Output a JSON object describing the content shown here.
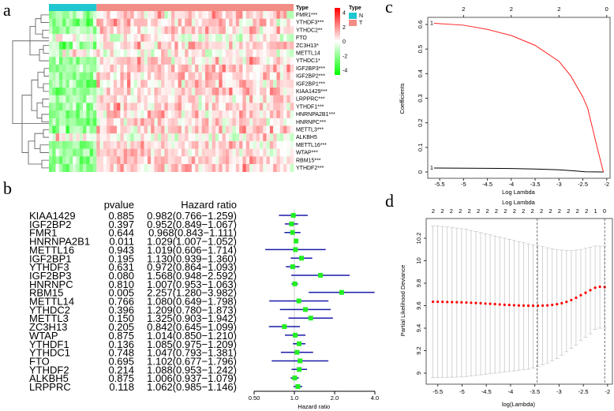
{
  "panel_labels": {
    "a": "a",
    "b": "b",
    "c": "c",
    "d": "d"
  },
  "chart_data": [
    {
      "type": "heatmap",
      "panel": "a",
      "annotation_label": "Type",
      "groups": [
        {
          "name": "N",
          "color": "#1fc7d1",
          "count": 14
        },
        {
          "name": "T",
          "color": "#f28d86",
          "count": 58
        }
      ],
      "legend_title": "Type",
      "color_scale": {
        "min": -4,
        "max": 4,
        "ticks": [
          4,
          2,
          0,
          -2,
          -4
        ],
        "low_color": "#00ff00",
        "mid_color": "#ffffff",
        "high_color": "#ff0000"
      },
      "rows": [
        "FMR1***",
        "YTHDF3***",
        "YTHDC2**",
        "FTO",
        "ZC3H13*",
        "METTL14",
        "YTHDC1*",
        "IGF2BP3***",
        "IGF2BP2***",
        "IGF2BP1***",
        "KIAA1429***",
        "LRPPRC***",
        "YTHDF1***",
        "HNRNPA2B1***",
        "HNRNPC***",
        "METTL3***",
        "ALKBH5",
        "METTL16***",
        "WTAP***",
        "RBM15***",
        "YTHDF2***"
      ]
    },
    {
      "type": "forest",
      "panel": "b",
      "headers": {
        "pvalue": "pvalue",
        "hr": "Hazard ratio"
      },
      "xlabel": "Hazard ratio",
      "xticks": [
        "0.50",
        "1.0",
        "2.0",
        "4.0"
      ],
      "xlim": [
        0.5,
        4.0
      ],
      "rows": [
        {
          "gene": "KIAA1429",
          "pvalue": "0.885",
          "hr_text": "0.982(0.766−1.259)",
          "hr": 0.982,
          "lo": 0.766,
          "hi": 1.259
        },
        {
          "gene": "IGF2BP2",
          "pvalue": "0.397",
          "hr_text": "0.952(0.849−1.067)",
          "hr": 0.952,
          "lo": 0.849,
          "hi": 1.067
        },
        {
          "gene": "FMR1",
          "pvalue": "0.644",
          "hr_text": "0.968(0.843−1.111)",
          "hr": 0.968,
          "lo": 0.843,
          "hi": 1.111
        },
        {
          "gene": "HNRNPA2B1",
          "pvalue": "0.011",
          "hr_text": "1.029(1.007−1.052)",
          "hr": 1.029,
          "lo": 1.007,
          "hi": 1.052
        },
        {
          "gene": "METTL16",
          "pvalue": "0.943",
          "hr_text": "1.019(0.606−1.714)",
          "hr": 1.019,
          "lo": 0.606,
          "hi": 1.714
        },
        {
          "gene": "IGF2BP1",
          "pvalue": "0.195",
          "hr_text": "1.130(0.939−1.360)",
          "hr": 1.13,
          "lo": 0.939,
          "hi": 1.36
        },
        {
          "gene": "YTHDF3",
          "pvalue": "0.631",
          "hr_text": "0.972(0.864−1.093)",
          "hr": 0.972,
          "lo": 0.864,
          "hi": 1.093
        },
        {
          "gene": "IGF2BP3",
          "pvalue": "0.080",
          "hr_text": "1.568(0.948−2.592)",
          "hr": 1.568,
          "lo": 0.948,
          "hi": 2.592
        },
        {
          "gene": "HNRNPC",
          "pvalue": "0.810",
          "hr_text": "1.007(0.953−1.063)",
          "hr": 1.007,
          "lo": 0.953,
          "hi": 1.063
        },
        {
          "gene": "RBM15",
          "pvalue": "0.005",
          "hr_text": "2.257(1.280−3.982)",
          "hr": 2.257,
          "lo": 1.28,
          "hi": 3.982
        },
        {
          "gene": "METTL14",
          "pvalue": "0.766",
          "hr_text": "1.080(0.649−1.798)",
          "hr": 1.08,
          "lo": 0.649,
          "hi": 1.798
        },
        {
          "gene": "YTHDC2",
          "pvalue": "0.396",
          "hr_text": "1.209(0.780−1.873)",
          "hr": 1.209,
          "lo": 0.78,
          "hi": 1.873
        },
        {
          "gene": "METTL3",
          "pvalue": "0.150",
          "hr_text": "1.325(0.903−1.942)",
          "hr": 1.325,
          "lo": 0.903,
          "hi": 1.942
        },
        {
          "gene": "ZC3H13",
          "pvalue": "0.205",
          "hr_text": "0.842(0.645−1.099)",
          "hr": 0.842,
          "lo": 0.645,
          "hi": 1.099
        },
        {
          "gene": "WTAP",
          "pvalue": "0.875",
          "hr_text": "1.014(0.850−1.210)",
          "hr": 1.014,
          "lo": 0.85,
          "hi": 1.21
        },
        {
          "gene": "YTHDF1",
          "pvalue": "0.136",
          "hr_text": "1.085(0.975−1.209)",
          "hr": 1.085,
          "lo": 0.975,
          "hi": 1.209
        },
        {
          "gene": "YTHDC1",
          "pvalue": "0.748",
          "hr_text": "1.047(0.793−1.381)",
          "hr": 1.047,
          "lo": 0.793,
          "hi": 1.381
        },
        {
          "gene": "FTO",
          "pvalue": "0.695",
          "hr_text": "1.102(0.677−1.796)",
          "hr": 1.102,
          "lo": 0.677,
          "hi": 1.796
        },
        {
          "gene": "YTHDF2",
          "pvalue": "0.214",
          "hr_text": "1.088(0.953−1.242)",
          "hr": 1.088,
          "lo": 0.953,
          "hi": 1.242
        },
        {
          "gene": "ALKBH5",
          "pvalue": "0.875",
          "hr_text": "1.006(0.937−1.079)",
          "hr": 1.006,
          "lo": 0.937,
          "hi": 1.079
        },
        {
          "gene": "LRPPRC",
          "pvalue": "0.118",
          "hr_text": "1.062(0.985−1.146)",
          "hr": 1.062,
          "lo": 0.985,
          "hi": 1.146
        }
      ],
      "colors": {
        "point": "#22ee22",
        "ci": "#1a1aa8",
        "ref": "#cccccc"
      }
    },
    {
      "type": "line",
      "panel": "c",
      "xlabel": "Log Lambda",
      "ylabel": "Coefficients",
      "xlim": [
        -5.75,
        -1.93
      ],
      "ylim": [
        0.0,
        0.6
      ],
      "xticks": [
        -5.5,
        -5.0,
        -4.5,
        -4.0,
        -3.5,
        -3.0,
        -2.5,
        -2.0
      ],
      "yticks": [
        0.0,
        0.1,
        0.2,
        0.3,
        0.4,
        0.5,
        0.6
      ],
      "top_axis": {
        "at": [
          -5.0,
          -4.0,
          -3.0,
          -2.0
        ],
        "labels": [
          "2",
          "2",
          "2",
          "0"
        ]
      },
      "series": [
        {
          "name": "1",
          "color": "#ff2222",
          "x": [
            -5.62,
            -5.0,
            -4.5,
            -4.0,
            -3.5,
            -3.0,
            -2.75,
            -2.5,
            -2.4,
            -2.3,
            -2.2,
            -2.07
          ],
          "y": [
            0.605,
            0.597,
            0.58,
            0.555,
            0.515,
            0.45,
            0.39,
            0.305,
            0.26,
            0.18,
            0.1,
            0.0
          ]
        },
        {
          "name": "1",
          "color": "#000000",
          "x": [
            -5.62,
            -4.5,
            -4.0,
            -3.5,
            -3.0,
            -2.7,
            -2.45,
            -2.07
          ],
          "y": [
            0.016,
            0.015,
            0.014,
            0.012,
            0.009,
            0.005,
            0.001,
            0.0
          ]
        }
      ]
    },
    {
      "type": "scatter",
      "panel": "d",
      "xlabel": "log(Lambda)",
      "top_label": "Log Lambda",
      "ylabel": "Partial Likelihood Deviance",
      "xlim": [
        -5.74,
        -1.9
      ],
      "ylim": [
        8.96,
        10.33
      ],
      "xticks": [
        -5.5,
        -5.0,
        -4.5,
        -4.0,
        -3.5,
        -3.0,
        -2.5,
        -2.0
      ],
      "yticks": [
        9.0,
        9.2,
        9.4,
        9.6,
        9.8,
        10.0,
        10.2
      ],
      "top_axis_labels": [
        "2",
        "2",
        "2",
        "2",
        "2",
        "2",
        "2",
        "2",
        "2",
        "2",
        "2",
        "2",
        "2",
        "2",
        "2",
        "2",
        "2",
        "2",
        "1",
        "0"
      ],
      "lambda_min": -3.45,
      "lambda_1se": -2.06,
      "x_start": -5.6,
      "x_end": -2.06,
      "mean": [
        9.635,
        9.635,
        9.634,
        9.633,
        9.632,
        9.631,
        9.63,
        9.628,
        9.626,
        9.624,
        9.622,
        9.619,
        9.617,
        9.614,
        9.611,
        9.608,
        9.606,
        9.604,
        9.602,
        9.601,
        9.6,
        9.6,
        9.6,
        9.601,
        9.603,
        9.607,
        9.613,
        9.622,
        9.634,
        9.65,
        9.67,
        9.693,
        9.715,
        9.738,
        9.76,
        9.768,
        9.765
      ],
      "upper": [
        10.31,
        10.31,
        10.305,
        10.3,
        10.295,
        10.29,
        10.285,
        10.28,
        10.27,
        10.26,
        10.25,
        10.24,
        10.23,
        10.22,
        10.21,
        10.2,
        10.19,
        10.18,
        10.17,
        10.16,
        10.15,
        10.14,
        10.135,
        10.125,
        10.115,
        10.105,
        10.1,
        10.095,
        10.09,
        10.09,
        10.095,
        10.1,
        10.11,
        10.12,
        10.13,
        10.13,
        10.13
      ],
      "lower": [
        8.96,
        8.96,
        8.962,
        8.963,
        8.964,
        8.965,
        8.967,
        8.97,
        8.975,
        8.98,
        8.985,
        8.99,
        8.995,
        9.0,
        9.005,
        9.01,
        9.015,
        9.02,
        9.025,
        9.03,
        9.035,
        9.045,
        9.06,
        9.075,
        9.09,
        9.11,
        9.13,
        9.16,
        9.19,
        9.22,
        9.25,
        9.29,
        9.32,
        9.35,
        9.39,
        9.4,
        9.4
      ],
      "colors": {
        "point": "#ff0000",
        "bar": "#c8c8c8"
      }
    }
  ]
}
